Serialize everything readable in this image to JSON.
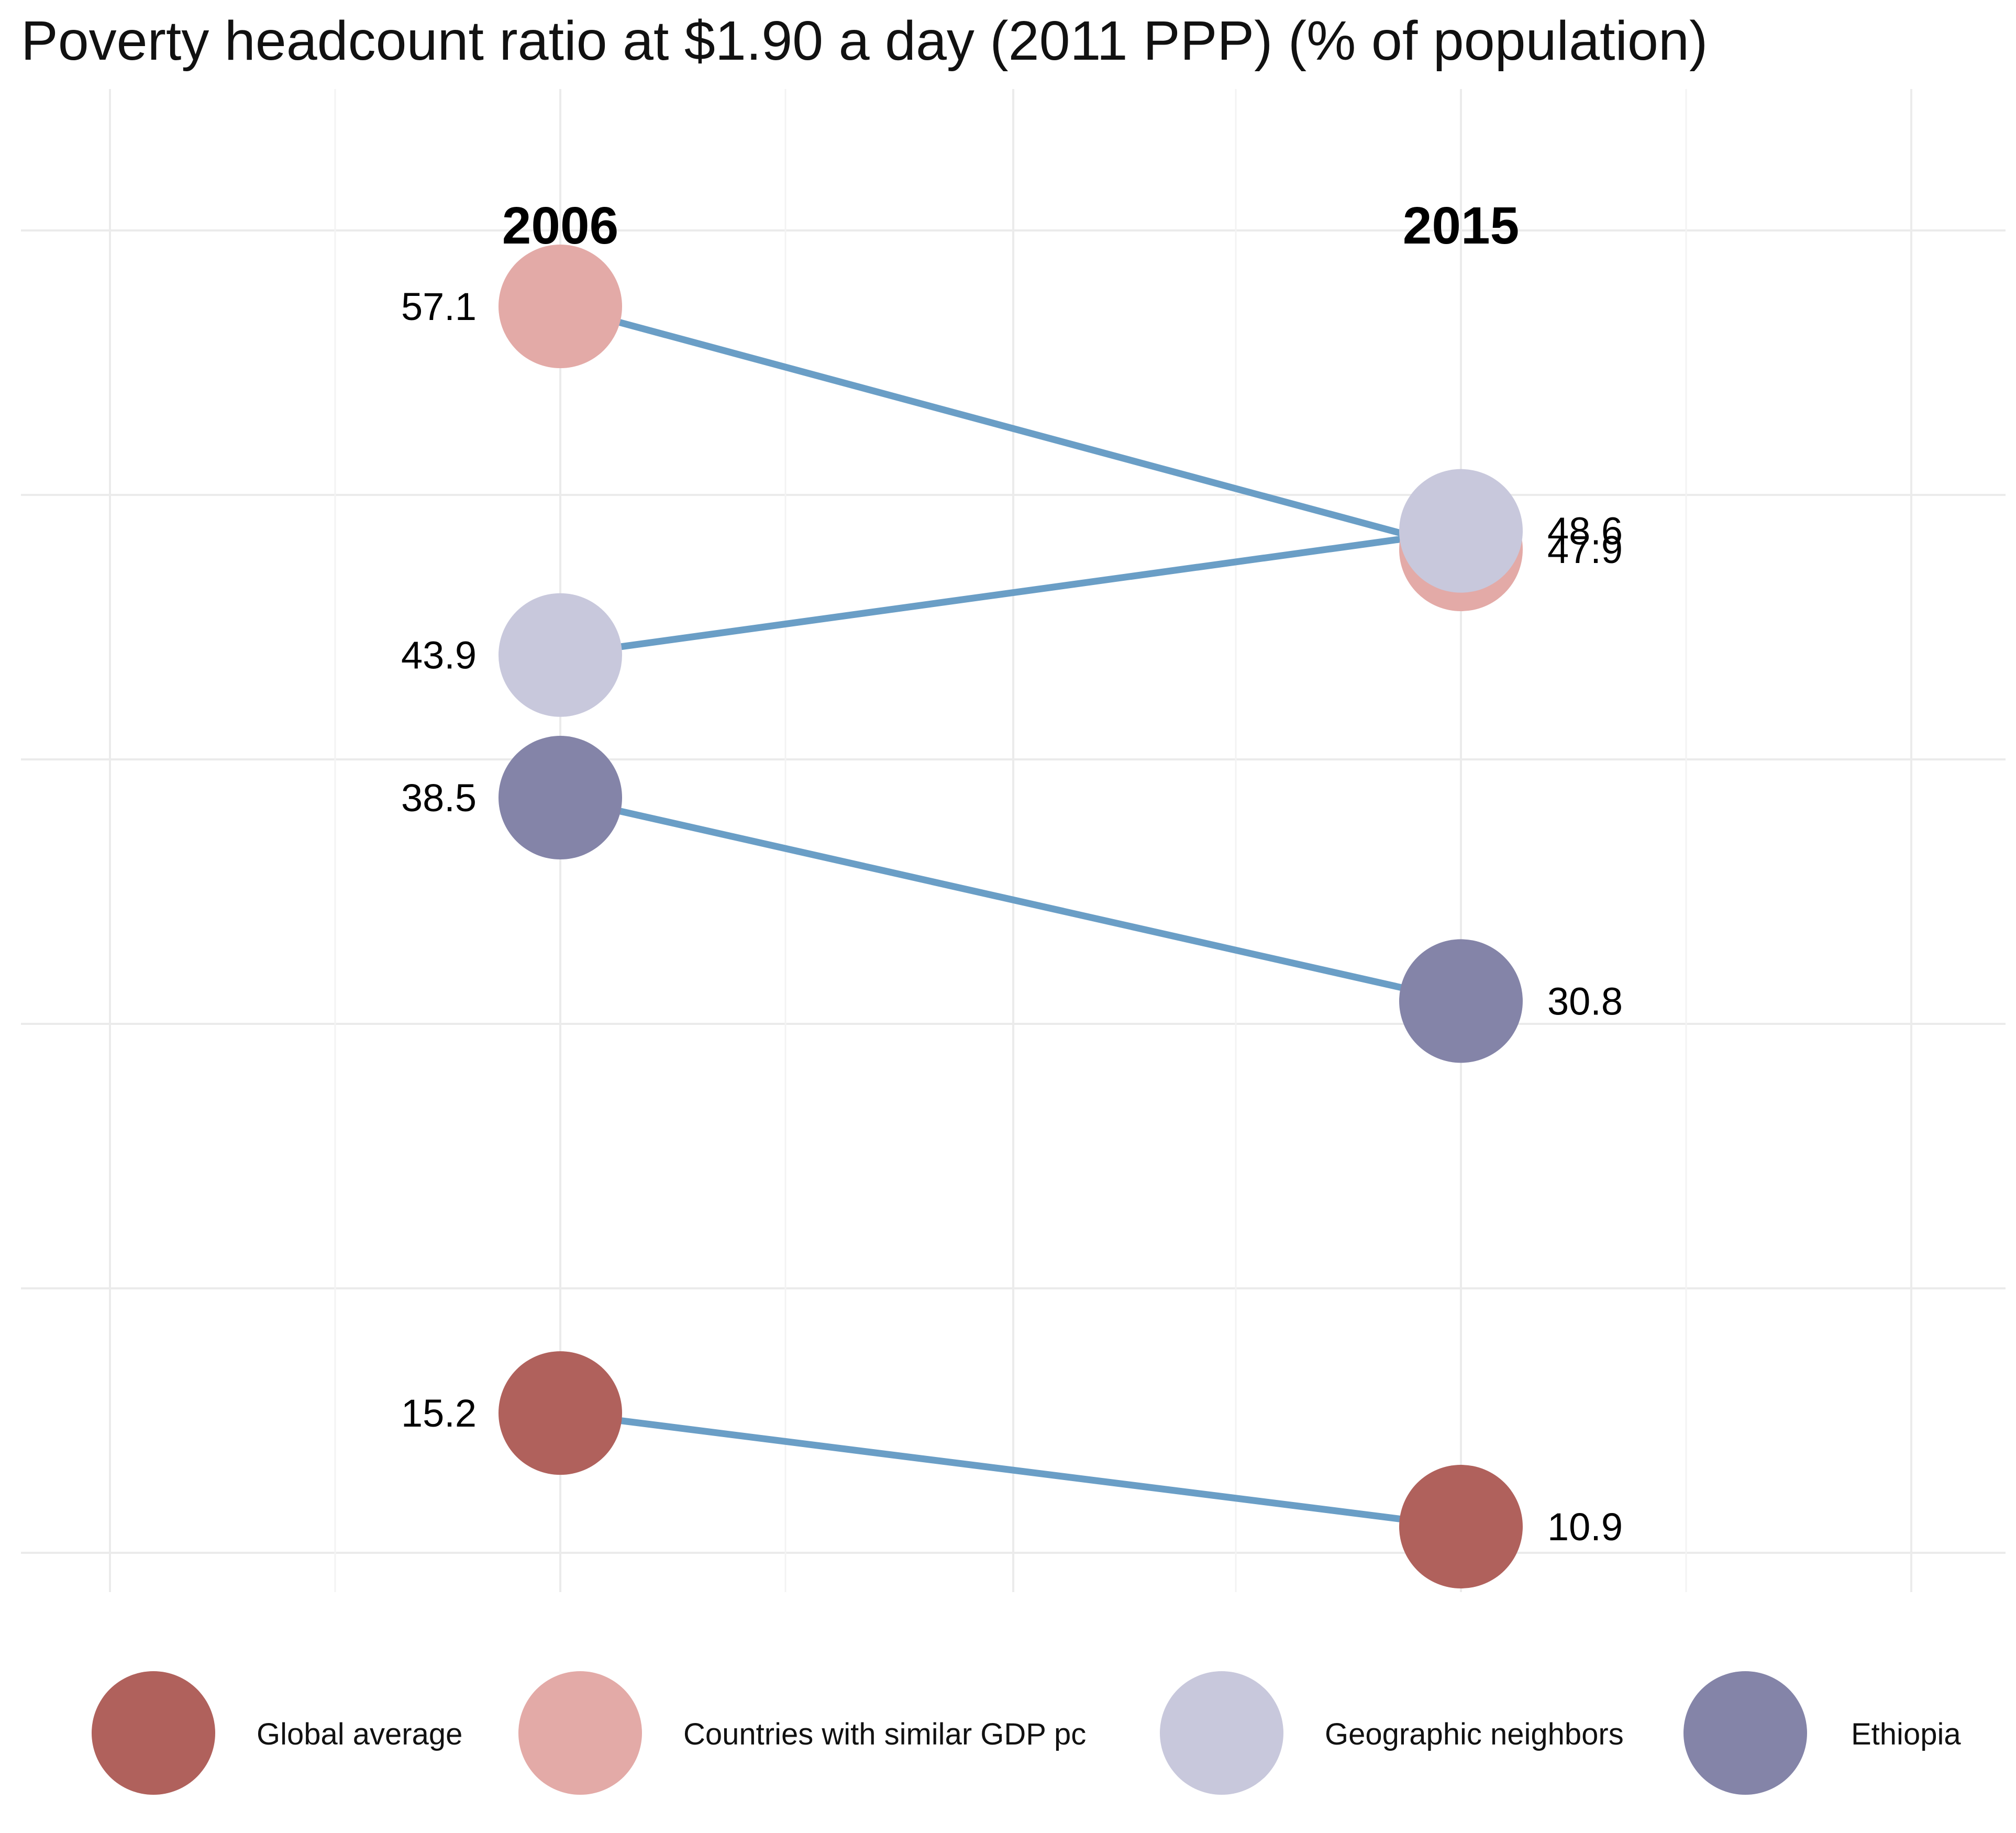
{
  "chart_data": {
    "type": "slope",
    "title": "Poverty headcount ratio at $1.90 a day (2011 PPP) (% of population)",
    "x": [
      "2006",
      "2015"
    ],
    "series": [
      {
        "name": "Global average",
        "color": "#b0615c",
        "values": [
          15.2,
          10.9
        ],
        "labels": [
          "15.2",
          "10.9"
        ]
      },
      {
        "name": "Countries with similar GDP pc",
        "color": "#e3aaa7",
        "values": [
          57.1,
          47.9
        ],
        "labels": [
          "57.1",
          "47.9"
        ]
      },
      {
        "name": "Geographic neighbors",
        "color": "#c8c8dc",
        "values": [
          43.9,
          48.6
        ],
        "labels": [
          "43.9",
          "48.6"
        ]
      },
      {
        "name": "Ethiopia",
        "color": "#8484a8",
        "values": [
          38.5,
          30.8
        ],
        "labels": [
          "38.5",
          "30.8"
        ]
      }
    ],
    "line_color": "#6a9ec6",
    "ylim": [
      5,
      60
    ],
    "grid": true,
    "legend_position": "bottom"
  }
}
